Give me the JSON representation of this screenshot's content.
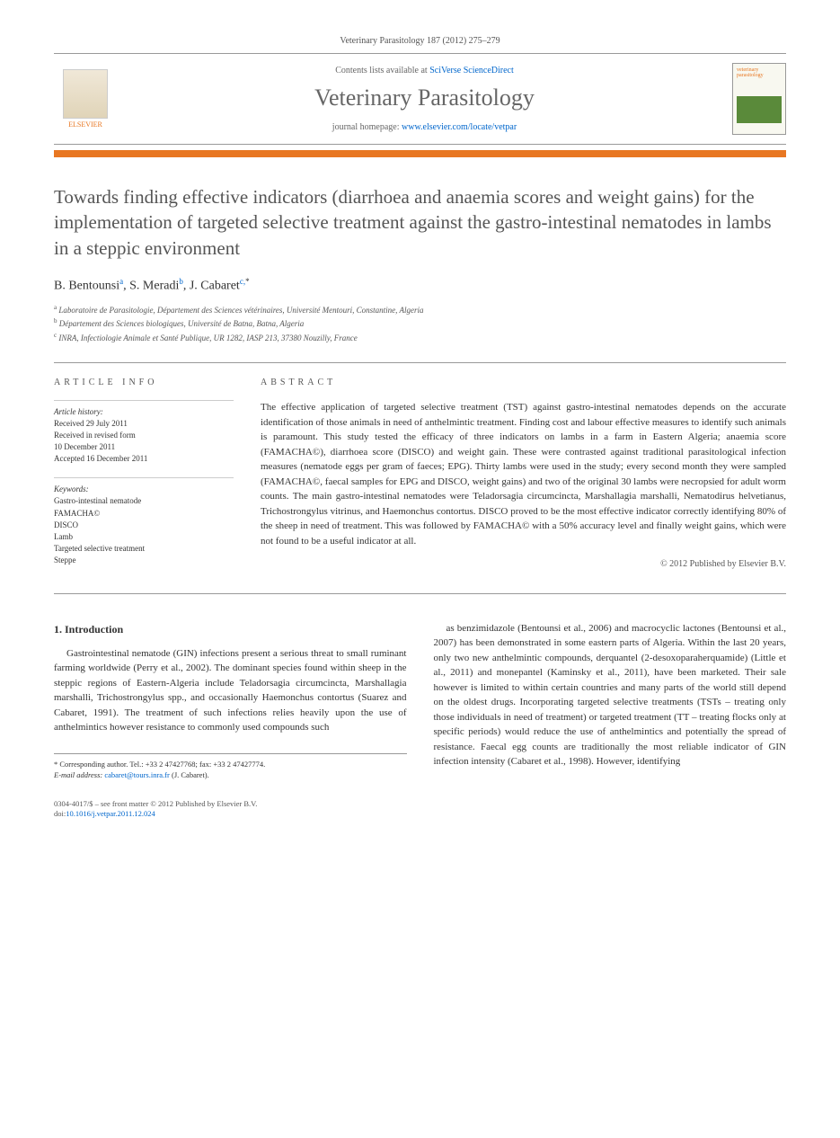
{
  "journal_ref": "Veterinary Parasitology 187 (2012) 275–279",
  "header": {
    "contents_prefix": "Contents lists available at ",
    "contents_link": "SciVerse ScienceDirect",
    "journal_name": "Veterinary Parasitology",
    "homepage_prefix": "journal homepage: ",
    "homepage_url": "www.elsevier.com/locate/vetpar",
    "elsevier_label": "ELSEVIER",
    "cover_label": "veterinary parasitology"
  },
  "title": "Towards finding effective indicators (diarrhoea and anaemia scores and weight gains) for the implementation of targeted selective treatment against the gastro-intestinal nematodes in lambs in a steppic environment",
  "authors": [
    {
      "name": "B. Bentounsi",
      "aff": "a"
    },
    {
      "name": "S. Meradi",
      "aff": "b"
    },
    {
      "name": "J. Cabaret",
      "aff": "c,",
      "corr": true
    }
  ],
  "affiliations": [
    {
      "sup": "a",
      "text": "Laboratoire de Parasitologie, Département des Sciences vétérinaires, Université Mentouri, Constantine, Algeria"
    },
    {
      "sup": "b",
      "text": "Département des Sciences biologiques, Université de Batna, Batna, Algeria"
    },
    {
      "sup": "c",
      "text": "INRA, Infectiologie Animale et Santé Publique, UR 1282, IASP 213, 37380 Nouzilly, France"
    }
  ],
  "info_heading": "ARTICLE INFO",
  "abstract_heading": "ABSTRACT",
  "history": {
    "label": "Article history:",
    "lines": [
      "Received 29 July 2011",
      "Received in revised form",
      "10 December 2011",
      "Accepted 16 December 2011"
    ]
  },
  "keywords": {
    "label": "Keywords:",
    "items": [
      "Gastro-intestinal nematode",
      "FAMACHA©",
      "DISCO",
      "Lamb",
      "Targeted selective treatment",
      "Steppe"
    ]
  },
  "abstract": "The effective application of targeted selective treatment (TST) against gastro-intestinal nematodes depends on the accurate identification of those animals in need of anthelmintic treatment. Finding cost and labour effective measures to identify such animals is paramount. This study tested the efficacy of three indicators on lambs in a farm in Eastern Algeria; anaemia score (FAMACHA©), diarrhoea score (DISCO) and weight gain. These were contrasted against traditional parasitological infection measures (nematode eggs per gram of faeces; EPG). Thirty lambs were used in the study; every second month they were sampled (FAMACHA©, faecal samples for EPG and DISCO, weight gains) and two of the original 30 lambs were necropsied for adult worm counts. The main gastro-intestinal nematodes were Teladorsagia circumcincta, Marshallagia marshalli, Nematodirus helvetianus, Trichostrongylus vitrinus, and Haemonchus contortus. DISCO proved to be the most effective indicator correctly identifying 80% of the sheep in need of treatment. This was followed by FAMACHA© with a 50% accuracy level and finally weight gains, which were not found to be a useful indicator at all.",
  "copyright": "© 2012 Published by Elsevier B.V.",
  "intro_heading": "1. Introduction",
  "col1": "Gastrointestinal nematode (GIN) infections present a serious threat to small ruminant farming worldwide (Perry et al., 2002). The dominant species found within sheep in the steppic regions of Eastern-Algeria include Teladorsagia circumcincta, Marshallagia marshalli, Trichostrongylus spp., and occasionally Haemonchus contortus (Suarez and Cabaret, 1991). The treatment of such infections relies heavily upon the use of anthelmintics however resistance to commonly used compounds such",
  "col2": "as benzimidazole (Bentounsi et al., 2006) and macrocyclic lactones (Bentounsi et al., 2007) has been demonstrated in some eastern parts of Algeria. Within the last 20 years, only two new anthelmintic compounds, derquantel (2-desoxoparaherquamide) (Little et al., 2011) and monepantel (Kaminsky et al., 2011), have been marketed. Their sale however is limited to within certain countries and many parts of the world still depend on the oldest drugs. Incorporating targeted selective treatments (TSTs – treating only those individuals in need of treatment) or targeted treatment (TT – treating flocks only at specific periods) would reduce the use of anthelmintics and potentially the spread of resistance. Faecal egg counts are traditionally the most reliable indicator of GIN infection intensity (Cabaret et al., 1998). However, identifying",
  "corr_footnote": {
    "star": "*",
    "text": "Corresponding author. Tel.: +33 2 47427768; fax: +33 2 47427774.",
    "email_label": "E-mail address:",
    "email": "cabaret@tours.inra.fr",
    "name": "(J. Cabaret)."
  },
  "footer": {
    "line1": "0304-4017/$ – see front matter © 2012 Published by Elsevier B.V.",
    "doi_prefix": "doi:",
    "doi": "10.1016/j.vetpar.2011.12.024"
  }
}
